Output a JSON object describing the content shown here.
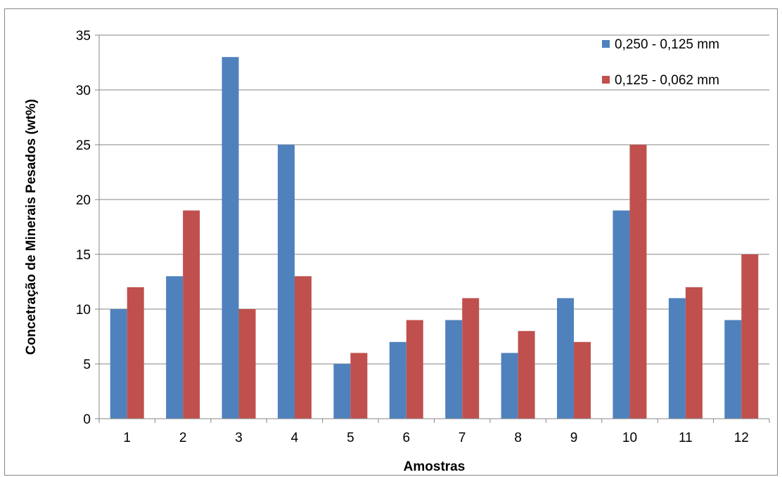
{
  "chart_data": {
    "type": "bar",
    "title": "",
    "xlabel": "Amostras",
    "ylabel": "Concetração de Minerais Pesados  (wt%)",
    "categories": [
      "1",
      "2",
      "3",
      "4",
      "5",
      "6",
      "7",
      "8",
      "9",
      "10",
      "11",
      "12"
    ],
    "ylim": [
      0,
      35
    ],
    "yticks": [
      "0",
      "5",
      "10",
      "15",
      "20",
      "25",
      "30",
      "35"
    ],
    "grid": true,
    "legend_position": "top-right",
    "series": [
      {
        "name": "0,250 - 0,125 mm",
        "color": "#4F81BD",
        "values": [
          10,
          13,
          33,
          25,
          5,
          7,
          9,
          6,
          11,
          19,
          11,
          9
        ]
      },
      {
        "name": "0,125 - 0,062 mm",
        "color": "#C0504D",
        "values": [
          12,
          19,
          10,
          13,
          6,
          9,
          11,
          8,
          7,
          25,
          12,
          15
        ]
      }
    ]
  }
}
